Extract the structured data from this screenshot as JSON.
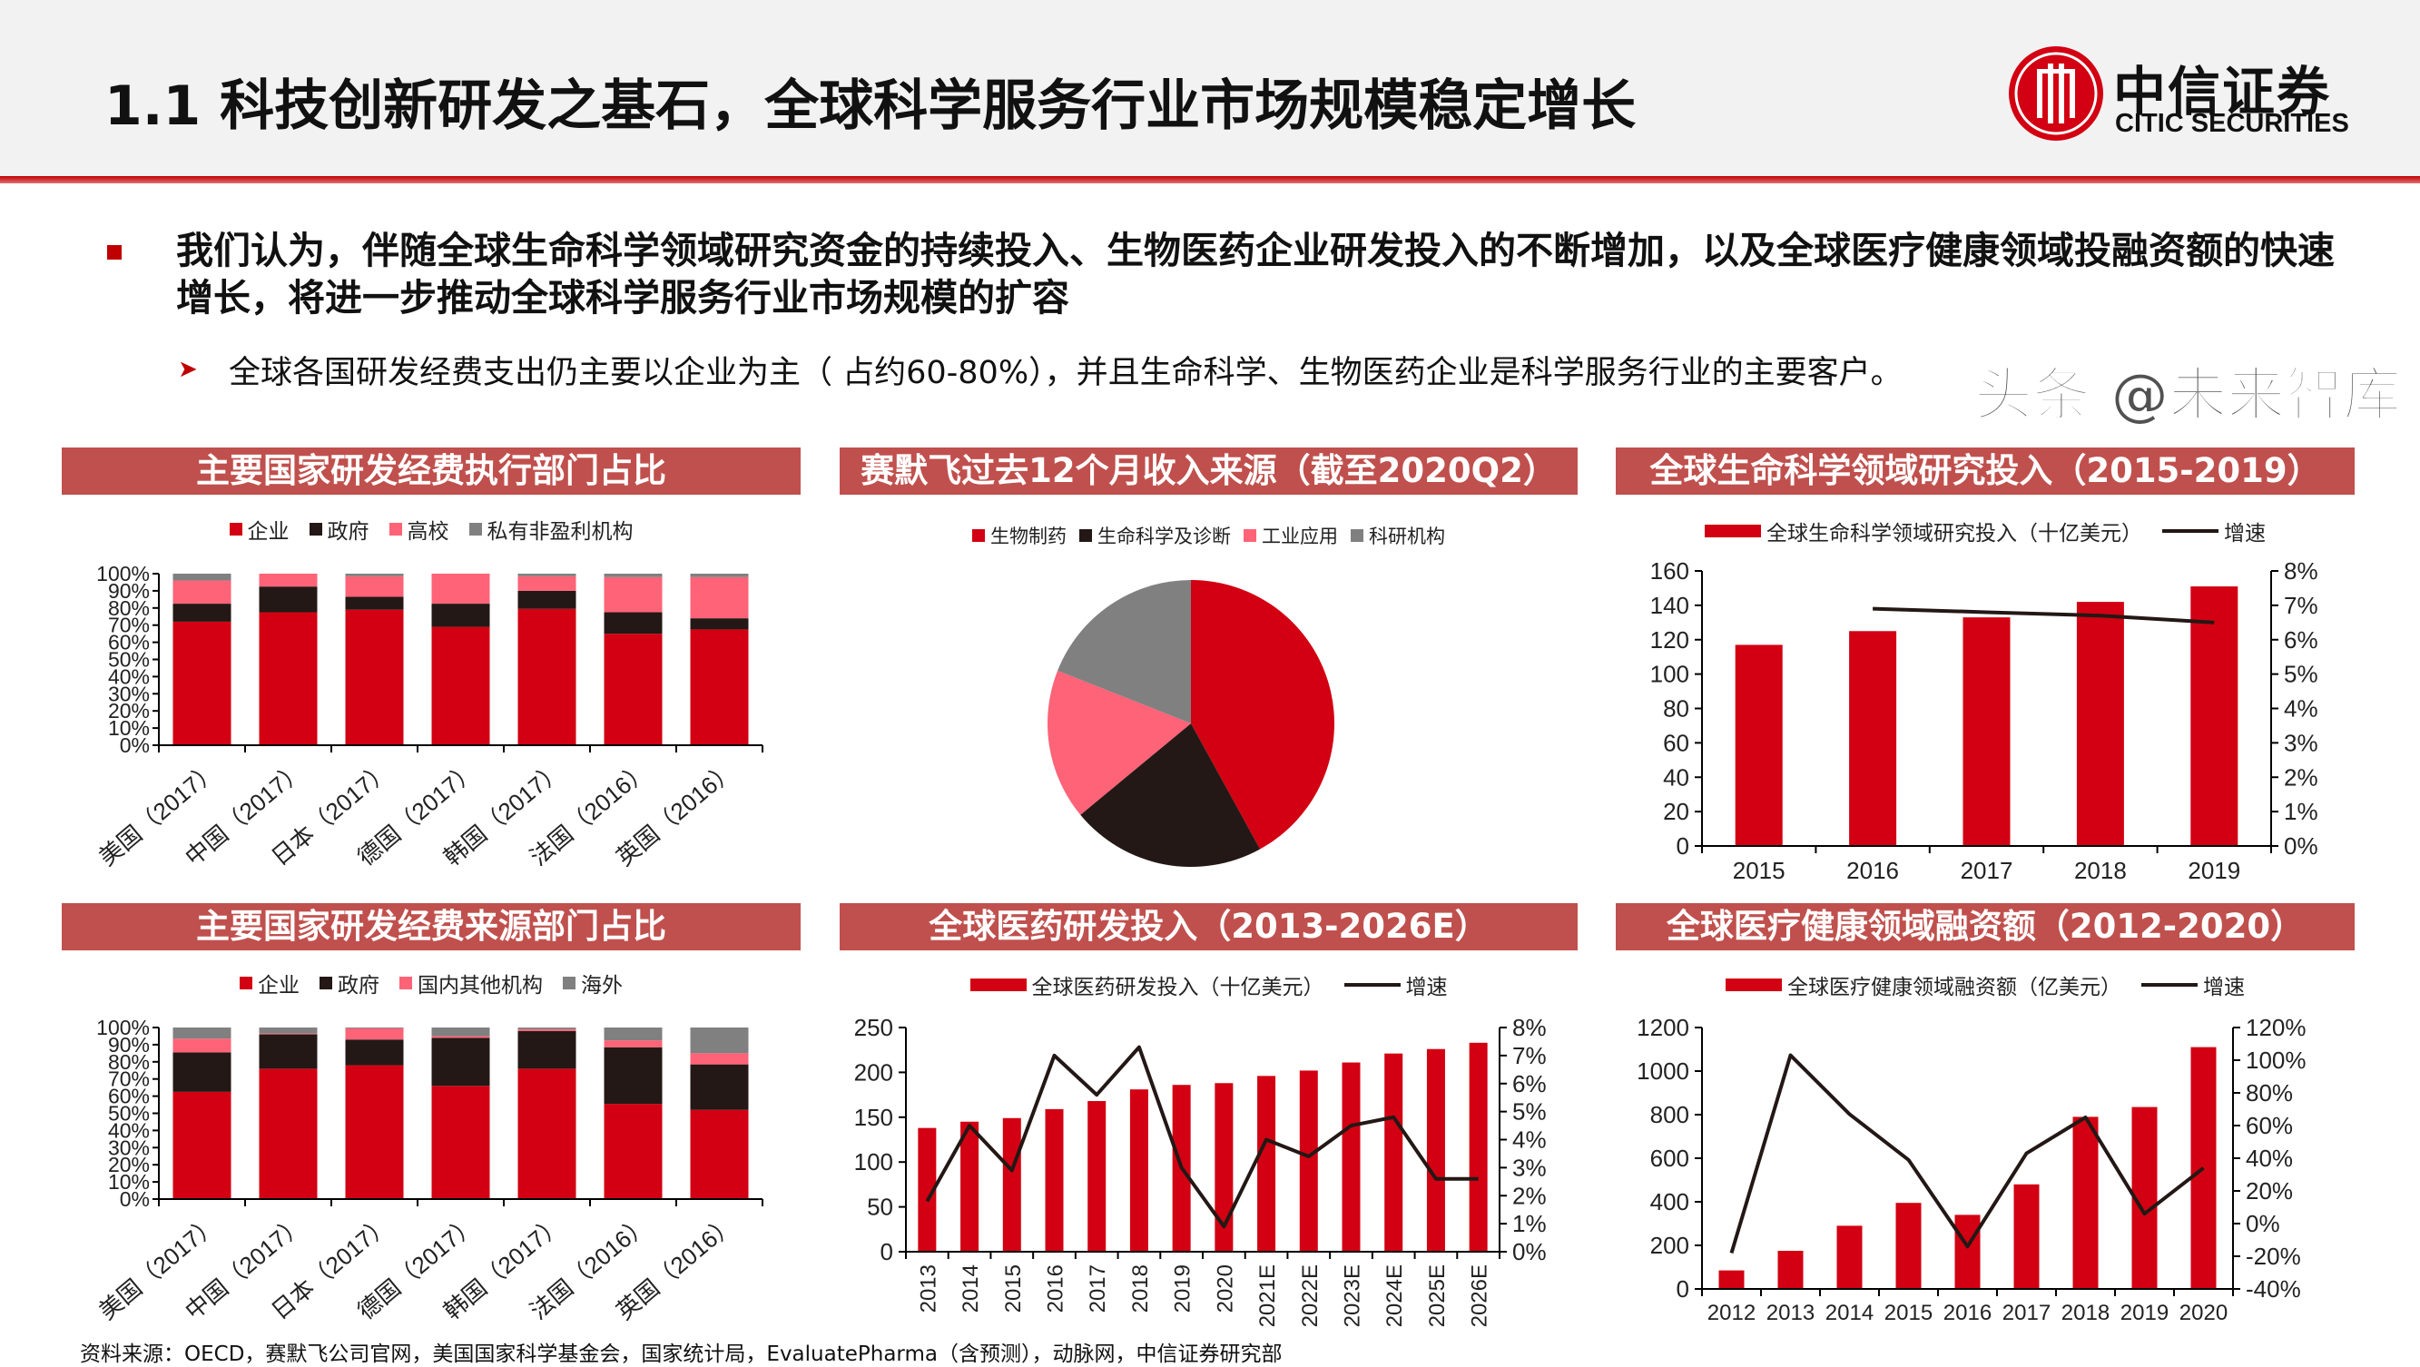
{
  "header": {
    "title": "1.1 科技创新研发之基石，全球科学服务行业市场规模稳定增长",
    "logo": {
      "cn": "中信证券",
      "en": "CITIC SECURITIES",
      "color": "#d20012"
    }
  },
  "body": {
    "bullet": "我们认为，伴随全球生命科学领域研究资金的持续投入、生物医药企业研发投入的不断增加，以及全球医疗健康领域投融资额的快速增长，将进一步推动全球科学服务行业市场规模的扩容",
    "sub_bullet": "全球各国研发经费支出仍主要以企业为主（ 占约60-80%），并且生命科学、生物医药企业是科学服务行业的主要客户。"
  },
  "footer": "资料来源：OECD，赛默飞公司官网，美国国家科学基金会，国家统计局，EvaluatePharma（含预测），动脉网，中信证券研究部",
  "watermark": "头条 @未来智库",
  "colors": {
    "red": "#d20012",
    "black": "#231815",
    "pink": "#ff6377",
    "gray": "#808080",
    "title_bar": "#c0504d"
  },
  "chart_data": [
    {
      "type": "bar",
      "stacked": true,
      "title": "主要国家研发经费执行部门占比",
      "categories": [
        "美国（2017）",
        "中国（2017）",
        "日本（2017）",
        "德国（2017）",
        "韩国（2017）",
        "法国（2016）",
        "英国（2016）"
      ],
      "series": [
        {
          "name": "企业",
          "color": "#d20012",
          "values": [
            72,
            77.5,
            79,
            69,
            79.5,
            65,
            67.5
          ]
        },
        {
          "name": "政府",
          "color": "#231815",
          "values": [
            10.5,
            15,
            7.5,
            13.5,
            10.5,
            12.5,
            6.5
          ]
        },
        {
          "name": "高校",
          "color": "#ff6377",
          "values": [
            13.5,
            7.5,
            12,
            17.5,
            8.5,
            20.5,
            24
          ]
        },
        {
          "name": "私有非盈利机构",
          "color": "#808080",
          "values": [
            4,
            0,
            1.5,
            0,
            1.5,
            2,
            2
          ]
        }
      ],
      "ylim": [
        0,
        100
      ],
      "yticks": [
        "0%",
        "10%",
        "20%",
        "30%",
        "40%",
        "50%",
        "60%",
        "70%",
        "80%",
        "90%",
        "100%"
      ],
      "legend": "top"
    },
    {
      "type": "pie",
      "title": "赛默飞过去12个月收入来源（截至2020Q2）",
      "categories": [
        "生物制药",
        "生命科学及诊断",
        "工业应用",
        "科研机构"
      ],
      "values": [
        42,
        22,
        17,
        19
      ],
      "colors": [
        "#d20012",
        "#231815",
        "#ff6377",
        "#808080"
      ],
      "legend": "top"
    },
    {
      "type": "bar",
      "title": "全球生命科学领域研究投入（2015-2019）",
      "categories": [
        "2015",
        "2016",
        "2017",
        "2018",
        "2019"
      ],
      "series": [
        {
          "name": "全球生命科学领域研究投入（十亿美元）",
          "type": "bar",
          "axis": "left",
          "values": [
            117,
            125,
            133,
            142,
            151
          ]
        },
        {
          "name": "增速",
          "type": "line",
          "axis": "right",
          "values": [
            null,
            6.9,
            6.8,
            6.7,
            6.5
          ]
        }
      ],
      "ylim": [
        0,
        160
      ],
      "ystep": 20,
      "y2lim": [
        0,
        8
      ],
      "y2step": 1,
      "y2unit": "%",
      "legend": "top"
    },
    {
      "type": "bar",
      "stacked": true,
      "title": "主要国家研发经费来源部门占比",
      "categories": [
        "美国（2017）",
        "中国（2017）",
        "日本（2017）",
        "德国（2017）",
        "韩国（2017）",
        "法国（2016）",
        "英国（2016）"
      ],
      "series": [
        {
          "name": "企业",
          "color": "#d20012",
          "values": [
            62.5,
            76,
            78,
            66,
            76,
            55.5,
            52
          ]
        },
        {
          "name": "政府",
          "color": "#231815",
          "values": [
            23,
            20,
            15,
            28,
            22,
            33,
            26.5
          ]
        },
        {
          "name": "国内其他机构",
          "color": "#ff6377",
          "values": [
            8,
            0.5,
            6.5,
            1,
            1,
            4,
            6.5
          ]
        },
        {
          "name": "海外",
          "color": "#808080",
          "values": [
            6.5,
            3.5,
            0.5,
            5,
            1,
            7.5,
            15
          ]
        }
      ],
      "ylim": [
        0,
        100
      ],
      "yticks": [
        "0%",
        "10%",
        "20%",
        "30%",
        "40%",
        "50%",
        "60%",
        "70%",
        "80%",
        "90%",
        "100%"
      ],
      "legend": "top"
    },
    {
      "type": "bar",
      "title": "全球医药研发投入（2013-2026E）",
      "categories": [
        "2013",
        "2014",
        "2015",
        "2016",
        "2017",
        "2018",
        "2019",
        "2020",
        "2021E",
        "2022E",
        "2023E",
        "2024E",
        "2025E",
        "2026E"
      ],
      "series": [
        {
          "name": "全球医药研发投入（十亿美元）",
          "type": "bar",
          "axis": "left",
          "values": [
            138,
            145,
            149,
            159,
            168,
            181,
            186,
            188,
            196,
            202,
            211,
            221,
            226,
            233
          ]
        },
        {
          "name": "增速",
          "type": "line",
          "axis": "right",
          "values": [
            1.8,
            4.5,
            2.9,
            7.0,
            5.6,
            7.3,
            3.0,
            0.9,
            4.0,
            3.4,
            4.5,
            4.8,
            2.6,
            2.6
          ]
        }
      ],
      "ylim": [
        0,
        250
      ],
      "ystep": 50,
      "y2lim": [
        0,
        8
      ],
      "y2step": 1,
      "y2unit": "%",
      "legend": "top"
    },
    {
      "type": "bar",
      "title": "全球医疗健康领域融资额（2012-2020）",
      "categories": [
        "2012",
        "2013",
        "2014",
        "2015",
        "2016",
        "2017",
        "2018",
        "2019",
        "2020"
      ],
      "series": [
        {
          "name": "全球医疗健康领域融资额（亿美元）",
          "type": "bar",
          "axis": "left",
          "values": [
            85,
            175,
            290,
            395,
            340,
            480,
            790,
            835,
            1110
          ]
        },
        {
          "name": "增速",
          "type": "line",
          "axis": "right",
          "values": [
            -18,
            103,
            67,
            39,
            -14,
            43,
            65,
            6,
            34
          ]
        }
      ],
      "ylim": [
        0,
        1200
      ],
      "ystep": 200,
      "y2lim": [
        -40,
        120
      ],
      "y2step": 20,
      "y2unit": "%",
      "legend": "top"
    }
  ]
}
